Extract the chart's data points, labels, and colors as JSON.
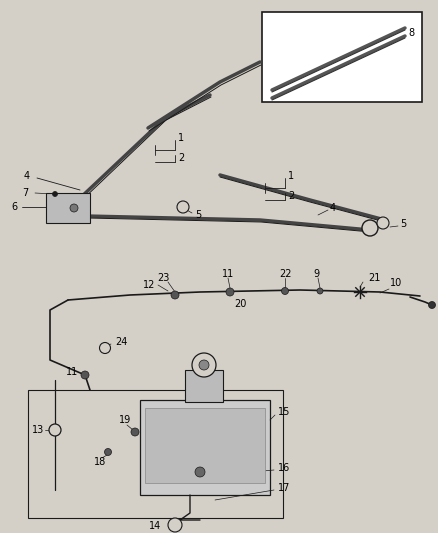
{
  "bg_color": "#d4d0c8",
  "line_color": "#1a1a1a",
  "fill_color": "#888888",
  "white": "#ffffff",
  "fig_width": 4.38,
  "fig_height": 5.33,
  "dpi": 100
}
